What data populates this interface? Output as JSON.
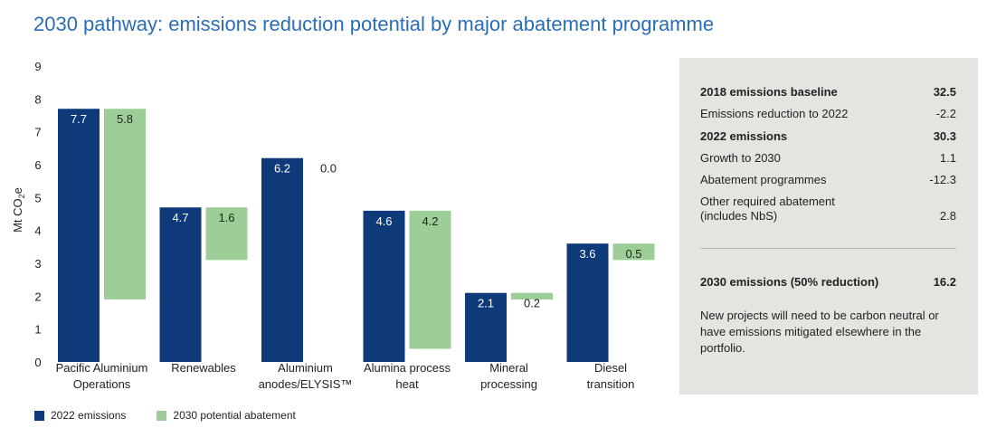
{
  "title": "2030 pathway: emissions reduction potential by major abatement programme",
  "colors": {
    "emissions_2022": "#0f3a7a",
    "abatement_2030": "#9dce97",
    "panel_bg": "#e6e4e0",
    "title": "#2a6db5"
  },
  "legend": [
    {
      "label": "2022 emissions",
      "color": "#0f3a7a"
    },
    {
      "label": "2030 potential abatement",
      "color": "#9dce97"
    }
  ],
  "chart_data": {
    "type": "bar",
    "ylabel": "Mt CO₂e",
    "ylim": [
      0,
      9
    ],
    "yticks": [
      "0",
      "1",
      "2",
      "3",
      "4",
      "5",
      "6",
      "7",
      "8",
      "9"
    ],
    "categories": [
      [
        "Pacific Aluminium",
        "Operations"
      ],
      [
        "Renewables"
      ],
      [
        "Aluminium",
        "anodes/ELYSIS™"
      ],
      [
        "Alumina process",
        "heat"
      ],
      [
        "Mineral",
        "processing"
      ],
      [
        "Diesel",
        "transition"
      ]
    ],
    "series": [
      {
        "name": "2022 emissions",
        "values": [
          7.7,
          4.7,
          6.2,
          4.6,
          2.1,
          3.6
        ],
        "labels": [
          "7.7",
          "4.7",
          "6.2",
          "4.6",
          "2.1",
          "3.6"
        ]
      },
      {
        "name": "2030 potential abatement",
        "values": [
          5.8,
          1.6,
          0.0,
          4.2,
          0.2,
          0.5
        ],
        "labels": [
          "5.8",
          "1.6",
          "0.0",
          "4.2",
          "0.2",
          "0.5"
        ]
      }
    ],
    "grid": false,
    "legend_position": "bottom-left"
  },
  "table": {
    "rows": [
      {
        "label": "2018 emissions baseline",
        "value": "32.5",
        "bold": true
      },
      {
        "label": "Emissions reduction to 2022",
        "value": "-2.2",
        "bold": false
      },
      {
        "label": "2022 emissions",
        "value": "30.3",
        "bold": true
      },
      {
        "label": "Growth to 2030",
        "value": "1.1",
        "bold": false
      },
      {
        "label": "Abatement programmes",
        "value": "-12.3",
        "bold": false
      },
      {
        "label": "Other required abatement (includes NbS)",
        "value": "2.8",
        "bold": false
      }
    ],
    "total": {
      "label": "2030 emissions (50% reduction)",
      "value": "16.2"
    },
    "note": "New projects will need to be carbon neutral or have emissions mitigated elsewhere in the portfolio."
  }
}
